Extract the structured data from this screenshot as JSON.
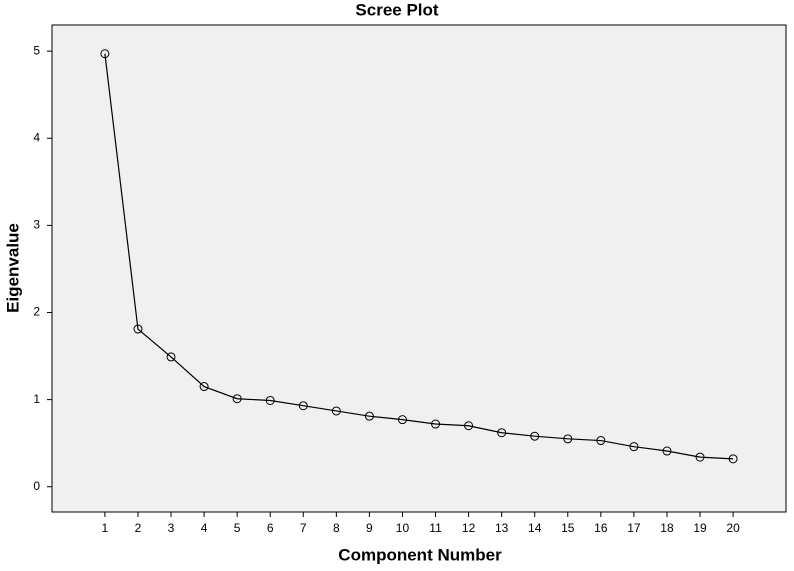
{
  "chart_data": {
    "type": "line",
    "title": "Scree Plot",
    "x_label": "Component Number",
    "y_label": "Eigenvalue",
    "x": [
      1,
      2,
      3,
      4,
      5,
      6,
      7,
      8,
      9,
      10,
      11,
      12,
      13,
      14,
      15,
      16,
      17,
      18,
      19,
      20
    ],
    "series": [
      {
        "color": "#000000",
        "values": [
          4.97,
          1.81,
          1.49,
          1.15,
          1.01,
          0.99,
          0.93,
          0.87,
          0.81,
          0.77,
          0.72,
          0.7,
          0.62,
          0.58,
          0.55,
          0.53,
          0.46,
          0.41,
          0.34,
          0.32
        ]
      }
    ],
    "xlim": [
      -0.6,
      21.6
    ],
    "xticks": [
      1,
      2,
      3,
      4,
      5,
      6,
      7,
      8,
      9,
      10,
      11,
      12,
      13,
      14,
      15,
      16,
      17,
      18,
      19,
      20
    ],
    "ylim": [
      -0.29,
      5.3
    ],
    "yticks": [
      0,
      1,
      2,
      3,
      4,
      5
    ],
    "grid": false
  }
}
